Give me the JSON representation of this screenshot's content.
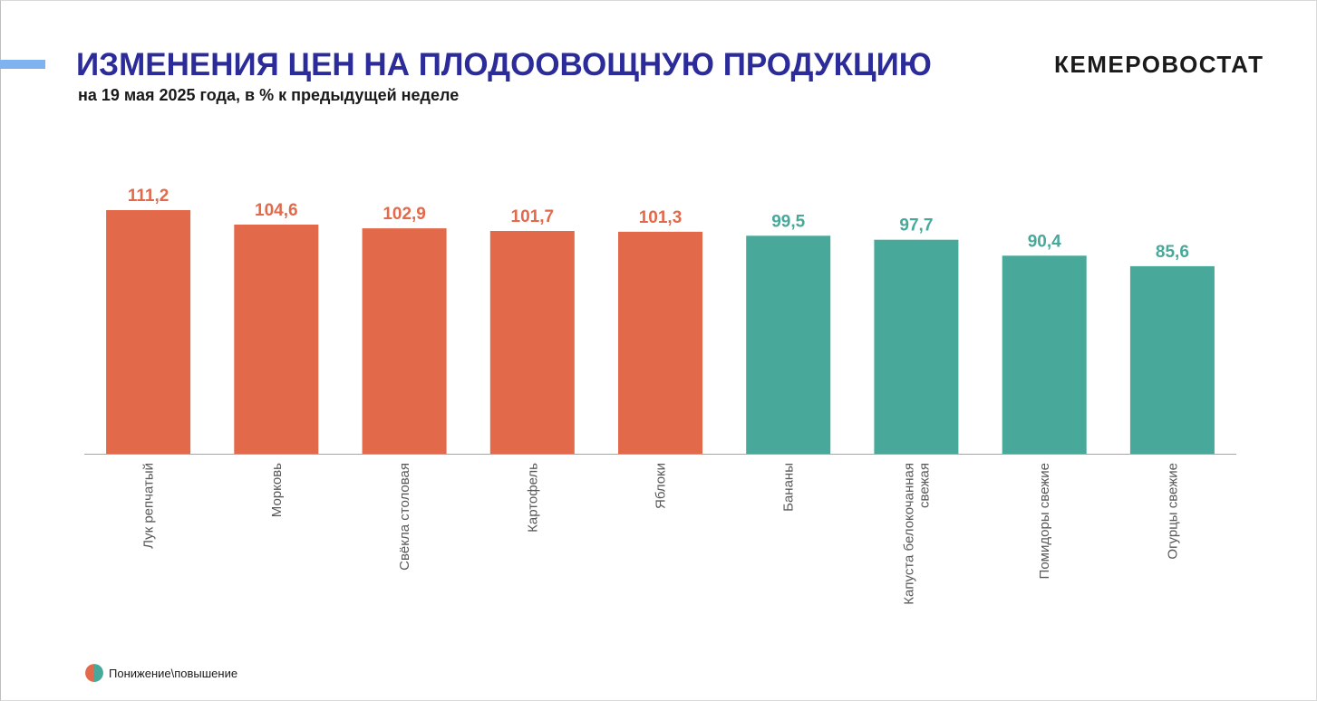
{
  "header": {
    "title": "ИЗМЕНЕНИЯ ЦЕН НА ПЛОДООВОЩНУЮ ПРОДУКЦИЮ",
    "subtitle": "на 19 мая 2025 года, в % к предыдущей неделе",
    "logo": "КЕМЕРОВОСТАТ"
  },
  "colors": {
    "title": "#2b2c9a",
    "increase": "#e2694a",
    "decrease": "#48a99a",
    "accent": "#7fb2ef",
    "axis": "#a6a6a6",
    "category_label": "#595959"
  },
  "legend": {
    "label": "Понижение\\повышение",
    "colors": [
      "#e2694a",
      "#48a99a"
    ]
  },
  "chart_data": {
    "type": "bar",
    "title": "",
    "xlabel": "",
    "ylabel": "",
    "ylim": [
      0,
      111.2
    ],
    "grid": false,
    "legend_position": "bottom-left",
    "categories": [
      "Лук репчатый",
      "Морковь",
      "Свёкла столовая",
      "Картофель",
      "Яблоки",
      "Бананы",
      "Капуста белокочанная свежая",
      "Помидоры свежие",
      "Огурцы свежие"
    ],
    "values": [
      111.2,
      104.6,
      102.9,
      101.7,
      101.3,
      99.5,
      97.7,
      90.4,
      85.6
    ],
    "value_labels": [
      "111,2",
      "104,6",
      "102,9",
      "101,7",
      "101,3",
      "99,5",
      "97,7",
      "90,4",
      "85,6"
    ],
    "direction": [
      "increase",
      "increase",
      "increase",
      "increase",
      "increase",
      "decrease",
      "decrease",
      "decrease",
      "decrease"
    ]
  }
}
